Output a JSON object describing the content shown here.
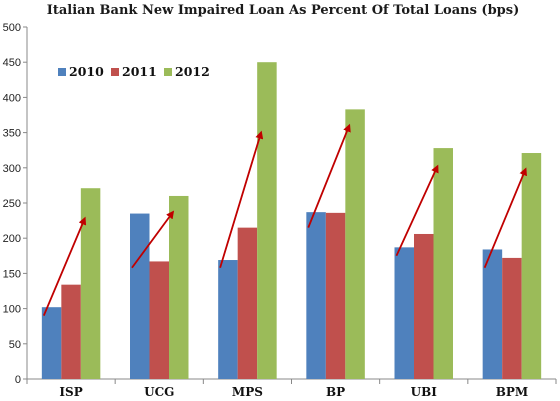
{
  "chart_data": {
    "type": "bar",
    "title": "Italian Bank New Impaired Loan As Percent Of Total Loans (bps)",
    "xlabel": "",
    "ylabel": "",
    "ylim": [
      0,
      500
    ],
    "yticks": [
      0,
      50,
      100,
      150,
      200,
      250,
      300,
      350,
      400,
      450,
      500
    ],
    "grid": false,
    "legend": "top-left",
    "categories": [
      "ISP",
      "UCG",
      "MPS",
      "BP",
      "UBI",
      "BPM"
    ],
    "series": [
      {
        "name": "2010",
        "color": "#4f81bd",
        "values": [
          102,
          235,
          169,
          237,
          187,
          184
        ]
      },
      {
        "name": "2011",
        "color": "#c0504d",
        "values": [
          134,
          167,
          215,
          236,
          206,
          172
        ]
      },
      {
        "name": "2012",
        "color": "#9bbb59",
        "values": [
          271,
          260,
          450,
          383,
          328,
          321
        ]
      }
    ],
    "annotations": {
      "type": "arrow",
      "color": "#c00000",
      "trend_arrows": [
        {
          "category": "ISP",
          "from": 90,
          "to": 228
        },
        {
          "category": "UCG",
          "from": 158,
          "to": 237
        },
        {
          "category": "MPS",
          "from": 158,
          "to": 350
        },
        {
          "category": "BP",
          "from": 215,
          "to": 360
        },
        {
          "category": "UBI",
          "from": 175,
          "to": 302
        },
        {
          "category": "BPM",
          "from": 158,
          "to": 298
        }
      ]
    }
  }
}
